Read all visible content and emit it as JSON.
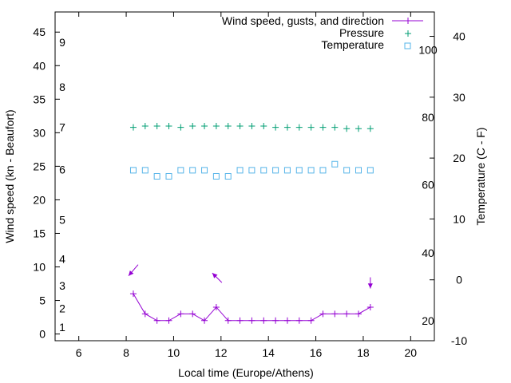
{
  "chart_data": {
    "type": "line",
    "title": "",
    "xlabel": "Local time (Europe/Athens)",
    "ylabel": "Wind speed (kn - Beaufort)",
    "y2label": "Temperature (C - F)",
    "xlim": [
      5,
      21
    ],
    "ylim": [
      -1,
      48
    ],
    "y2lim": [
      -10,
      44
    ],
    "x_ticks": [
      6,
      8,
      10,
      12,
      14,
      16,
      18,
      20
    ],
    "y_ticks": [
      0,
      5,
      10,
      15,
      20,
      25,
      30,
      35,
      40,
      45
    ],
    "y2_ticks": [
      -10,
      0,
      10,
      20,
      30,
      40
    ],
    "beaufort_labels": [
      {
        "y": 1,
        "label": "1"
      },
      {
        "y": 3.8,
        "label": "2"
      },
      {
        "y": 7.2,
        "label": "3"
      },
      {
        "y": 11.2,
        "label": "4"
      },
      {
        "y": 17,
        "label": "5"
      },
      {
        "y": 24.5,
        "label": "6"
      },
      {
        "y": 30.8,
        "label": "7"
      },
      {
        "y": 36.8,
        "label": "8"
      },
      {
        "y": 43.5,
        "label": "9"
      }
    ],
    "fahrenheit_labels": [
      {
        "t": -6.7,
        "label": "20"
      },
      {
        "t": 4.4,
        "label": "40"
      },
      {
        "t": 15.6,
        "label": "60"
      },
      {
        "t": 26.7,
        "label": "80"
      },
      {
        "t": 37.8,
        "label": "100"
      }
    ],
    "series": [
      {
        "name": "Wind speed, gusts, and direction",
        "color": "#9400d3",
        "marker": "plus",
        "axis": "left",
        "x": [
          8.3,
          8.8,
          9.3,
          9.8,
          10.3,
          10.8,
          11.3,
          11.8,
          12.3,
          12.8,
          13.3,
          13.8,
          14.3,
          14.8,
          15.3,
          15.8,
          16.3,
          16.8,
          17.3,
          17.8,
          18.3
        ],
        "y": [
          6,
          3,
          2,
          2,
          3,
          3,
          2,
          4,
          2,
          2,
          2,
          2,
          2,
          2,
          2,
          2,
          3,
          3,
          3,
          3,
          4
        ]
      },
      {
        "name": "Pressure",
        "color": "#009e73",
        "marker": "plus",
        "axis": "left",
        "x": [
          8.3,
          8.8,
          9.3,
          9.8,
          10.3,
          10.8,
          11.3,
          11.8,
          12.3,
          12.8,
          13.3,
          13.8,
          14.3,
          14.8,
          15.3,
          15.8,
          16.3,
          16.8,
          17.3,
          17.8,
          18.3
        ],
        "y": [
          30.8,
          31,
          31,
          31,
          30.8,
          31,
          31,
          31,
          31,
          31,
          31,
          31,
          30.8,
          30.8,
          30.8,
          30.8,
          30.8,
          30.8,
          30.6,
          30.6,
          30.6
        ]
      },
      {
        "name": "Temperature",
        "color": "#56b4e9",
        "marker": "square",
        "axis": "right",
        "x": [
          8.3,
          8.8,
          9.3,
          9.8,
          10.3,
          10.8,
          11.3,
          11.8,
          12.3,
          12.8,
          13.3,
          13.8,
          14.3,
          14.8,
          15.3,
          15.8,
          16.3,
          16.8,
          17.3,
          17.8,
          18.3
        ],
        "y": [
          18,
          18,
          17,
          17,
          18,
          18,
          18,
          17,
          17,
          18,
          18,
          18,
          18,
          18,
          18,
          18,
          18,
          19,
          18,
          18,
          18
        ]
      }
    ],
    "direction_arrows": [
      {
        "x": 8.3,
        "y": 9.5,
        "dir": "from-northeast"
      },
      {
        "x": 11.8,
        "y": 8.5,
        "dir": "from-southeast"
      },
      {
        "x": 18.3,
        "y": 7.5,
        "dir": "from-north"
      }
    ]
  }
}
